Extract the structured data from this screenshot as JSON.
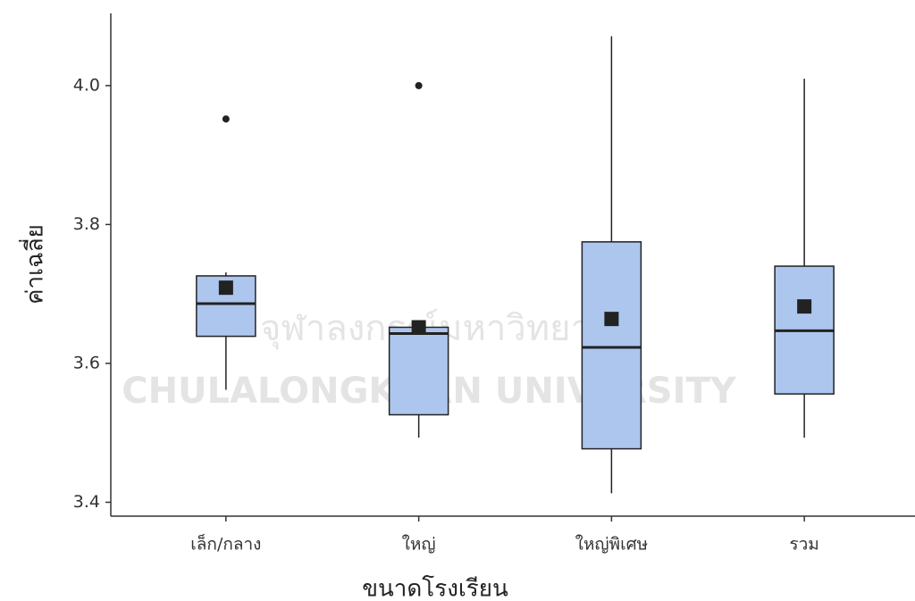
{
  "chart_data": {
    "type": "box",
    "x_label": "ขนาดโรงเรียน",
    "y_label": "ค่าเฉลี่ย",
    "watermark": [
      "จุฬาลงกรณ์มหาวิทยาลัย",
      "CHULALONGKORN UNIVERSITY"
    ],
    "categories": [
      "เล็ก/กลาง",
      "ใหญ่",
      "ใหญ่พิเศษ",
      "รวม"
    ],
    "color": "#adc6ee",
    "boxes": [
      {
        "low": 3.562,
        "q1": 3.639,
        "median": 3.686,
        "q3": 3.726,
        "high": 3.731,
        "mean": 3.709,
        "outliers": [
          3.952
        ]
      },
      {
        "low": 3.493,
        "q1": 3.526,
        "median": 3.643,
        "q3": 3.652,
        "high": 3.652,
        "mean": 3.652,
        "outliers": [
          4.0
        ]
      },
      {
        "low": 3.413,
        "q1": 3.477,
        "median": 3.623,
        "q3": 3.775,
        "high": 4.071,
        "mean": 3.664,
        "outliers": []
      },
      {
        "low": 3.493,
        "q1": 3.556,
        "median": 3.647,
        "q3": 3.74,
        "high": 4.01,
        "mean": 3.682,
        "outliers": []
      }
    ],
    "ylim": [
      3.38,
      4.104
    ],
    "yticks": [
      {
        "value": 3.4,
        "label": "3.4"
      },
      {
        "value": 3.6,
        "label": "3.6"
      },
      {
        "value": 3.8,
        "label": "3.8"
      },
      {
        "value": 4.0,
        "label": "4.0"
      }
    ]
  }
}
